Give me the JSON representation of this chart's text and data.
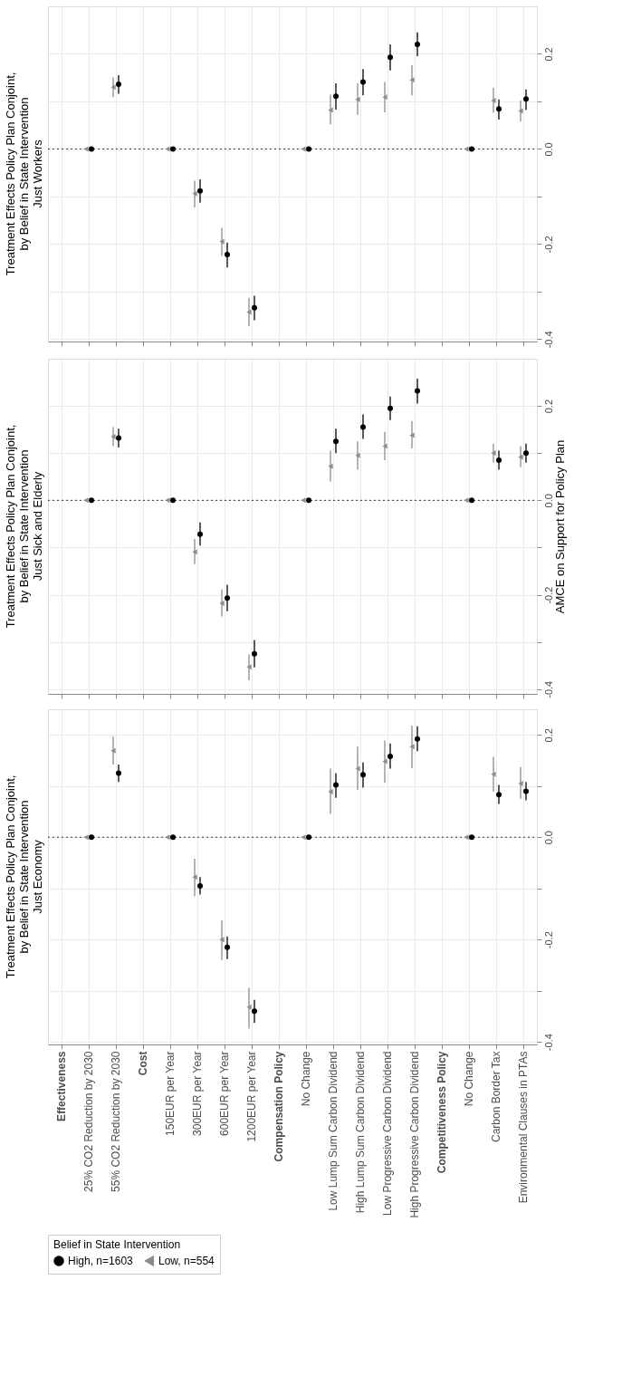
{
  "chart_data": [
    {
      "type": "scatter",
      "title": [
        "Treatment Effects Policy Plan Conjoint,",
        "by Belief in State Intervention",
        "Just Workers"
      ],
      "categories": [
        null,
        null,
        null,
        null,
        null,
        null,
        null,
        null,
        null,
        null,
        null,
        null,
        null,
        null,
        null,
        null,
        null,
        null
      ],
      "series": [
        {
          "color": "#000000",
          "marker": "circle",
          "values": [
            null,
            0,
            0.136,
            null,
            0,
            -0.088,
            -0.222,
            -0.334,
            null,
            0,
            0.111,
            0.141,
            0.193,
            0.22,
            null,
            0,
            0.084,
            0.105
          ],
          "errors": [
            null,
            null,
            [
              0.116,
              0.155
            ],
            null,
            null,
            [
              -0.113,
              -0.064
            ],
            [
              -0.249,
              -0.197
            ],
            [
              -0.36,
              -0.309
            ],
            null,
            null,
            [
              0.083,
              0.138
            ],
            [
              0.113,
              0.168
            ],
            [
              0.165,
              0.22
            ],
            [
              0.195,
              0.245
            ],
            null,
            null,
            [
              0.062,
              0.104
            ],
            [
              0.082,
              0.125
            ]
          ]
        },
        {
          "color": "#8c8c8c",
          "marker": "triangle",
          "values": [
            null,
            0,
            0.13,
            null,
            0,
            -0.094,
            -0.195,
            -0.343,
            null,
            0,
            0.082,
            0.104,
            0.109,
            0.145,
            null,
            0,
            0.102,
            0.08
          ],
          "errors": [
            null,
            null,
            [
              0.109,
              0.151
            ],
            null,
            null,
            [
              -0.123,
              -0.067
            ],
            [
              -0.225,
              -0.166
            ],
            [
              -0.373,
              -0.313
            ],
            null,
            null,
            [
              0.052,
              0.114
            ],
            [
              0.072,
              0.138
            ],
            [
              0.077,
              0.141
            ],
            [
              0.113,
              0.176
            ],
            null,
            null,
            [
              0.076,
              0.129
            ],
            [
              0.058,
              0.102
            ]
          ]
        }
      ],
      "ylim": [
        -0.405,
        0.3
      ],
      "yticks": [
        -0.4,
        {
          "value": -0.3,
          "label": null
        },
        -0.2,
        {
          "value": -0.1,
          "label": null
        },
        {
          "value": 0,
          "label": "0.0"
        },
        {
          "value": 0.1,
          "label": null
        },
        0.2
      ],
      "ref_lines": [
        {
          "axis": "y",
          "value": 0,
          "label": null,
          "line_style": "dotted"
        }
      ],
      "grid": true,
      "tick_labels": "y"
    },
    {
      "type": "scatter",
      "title": [
        "Treatment Effects Policy Plan Conjoint,",
        "by Belief in State Intervention",
        "Just Sick and Elderly"
      ],
      "ylabel": "AMCE on Support for Policy Plan",
      "categories": [
        null,
        null,
        null,
        null,
        null,
        null,
        null,
        null,
        null,
        null,
        null,
        null,
        null,
        null,
        null,
        null,
        null,
        null
      ],
      "series": [
        {
          "color": "#000000",
          "marker": "circle",
          "values": [
            null,
            0,
            0.132,
            null,
            0,
            -0.072,
            -0.207,
            -0.325,
            null,
            0,
            0.125,
            0.155,
            0.195,
            0.232,
            null,
            0,
            0.085,
            0.1
          ],
          "errors": [
            null,
            null,
            [
              0.112,
              0.152
            ],
            null,
            null,
            [
              -0.096,
              -0.047
            ],
            [
              -0.235,
              -0.179
            ],
            [
              -0.354,
              -0.296
            ],
            null,
            null,
            [
              0.1,
              0.152
            ],
            [
              0.13,
              0.182
            ],
            [
              0.17,
              0.22
            ],
            [
              0.205,
              0.258
            ],
            null,
            null,
            [
              0.065,
              0.105
            ],
            [
              0.08,
              0.12
            ]
          ]
        },
        {
          "color": "#8c8c8c",
          "marker": "triangle",
          "values": [
            null,
            0,
            0.135,
            null,
            0,
            -0.109,
            -0.218,
            -0.353,
            null,
            0,
            0.072,
            0.095,
            0.115,
            0.138,
            null,
            0,
            0.1,
            0.092
          ],
          "errors": [
            null,
            null,
            [
              0.115,
              0.155
            ],
            null,
            null,
            [
              -0.135,
              -0.082
            ],
            [
              -0.246,
              -0.189
            ],
            [
              -0.381,
              -0.326
            ],
            null,
            null,
            [
              0.04,
              0.105
            ],
            [
              0.065,
              0.125
            ],
            [
              0.085,
              0.145
            ],
            [
              0.11,
              0.168
            ],
            null,
            null,
            [
              0.08,
              0.12
            ],
            [
              0.07,
              0.115
            ]
          ]
        }
      ],
      "ylim": [
        -0.41,
        0.3
      ],
      "yticks": [
        -0.4,
        {
          "value": -0.3,
          "label": null
        },
        -0.2,
        {
          "value": -0.1,
          "label": null
        },
        {
          "value": 0,
          "label": "0.0"
        },
        {
          "value": 0.1,
          "label": null
        },
        0.2
      ],
      "ref_lines": [
        {
          "axis": "y",
          "value": 0,
          "label": null,
          "line_style": "dotted"
        }
      ],
      "grid": true,
      "tick_labels": "y"
    },
    {
      "type": "scatter",
      "title": [
        "Treatment Effects Policy Plan Conjoint,",
        "by Belief in State Intervention",
        "Just Economy"
      ],
      "legend_title": "Belief in State Intervention",
      "legend": "bottom",
      "categories": [
        "Effectiveness",
        "25% CO2 Reduction by 2030",
        "55% CO2 Reduction by 2030",
        "Cost",
        "150EUR per Year",
        "300EUR per Year",
        "600EUR per Year",
        "1200EUR per Year",
        "Compensation Policy",
        "No Change",
        "Low Lump Sum Carbon Dividend",
        "High Lump Sum Carbon Dividend",
        "Low Progressive Carbon Dividend",
        "High Progressive Carbon Dividend",
        "Competitiveness Policy",
        "No Change",
        "Carbon Border Tax",
        "Environmental Clauses in PTAs"
      ],
      "series": [
        {
          "name": "High, n=1603",
          "color": "#000000",
          "marker": "circle",
          "values": [
            null,
            0,
            0.125,
            null,
            0,
            -0.095,
            -0.215,
            -0.34,
            null,
            0,
            0.102,
            0.122,
            0.158,
            0.192,
            null,
            0,
            0.083,
            0.09
          ],
          "errors": [
            null,
            null,
            [
              0.108,
              0.142
            ],
            null,
            null,
            [
              -0.112,
              -0.078
            ],
            [
              -0.238,
              -0.194
            ],
            [
              -0.363,
              -0.318
            ],
            null,
            null,
            [
              0.077,
              0.125
            ],
            [
              0.097,
              0.146
            ],
            [
              0.134,
              0.183
            ],
            [
              0.168,
              0.217
            ],
            null,
            null,
            [
              0.065,
              0.102
            ],
            [
              0.072,
              0.108
            ]
          ]
        },
        {
          "name": "Low, n=554",
          "color": "#8c8c8c",
          "marker": "triangle",
          "values": [
            null,
            0,
            0.169,
            null,
            0,
            -0.078,
            -0.2,
            -0.332,
            null,
            0,
            0.089,
            0.134,
            0.148,
            0.177,
            null,
            0,
            0.123,
            0.105
          ],
          "errors": [
            null,
            null,
            [
              0.142,
              0.197
            ],
            null,
            null,
            [
              -0.115,
              -0.042
            ],
            [
              -0.24,
              -0.163
            ],
            [
              -0.374,
              -0.294
            ],
            null,
            null,
            [
              0.046,
              0.134
            ],
            [
              0.092,
              0.177
            ],
            [
              0.106,
              0.189
            ],
            [
              0.135,
              0.218
            ],
            null,
            null,
            [
              0.089,
              0.157
            ],
            [
              0.075,
              0.137
            ]
          ]
        }
      ],
      "ylim": [
        -0.405,
        0.25
      ],
      "yticks": [
        -0.4,
        {
          "value": -0.3,
          "label": null
        },
        -0.2,
        {
          "value": -0.1,
          "label": null
        },
        {
          "value": 0,
          "label": "0.0"
        },
        {
          "value": 0.1,
          "label": null
        },
        0.2
      ],
      "ref_lines": [
        {
          "axis": "y",
          "value": 0,
          "label": null,
          "line_style": "dotted"
        }
      ],
      "grid": true
    }
  ]
}
